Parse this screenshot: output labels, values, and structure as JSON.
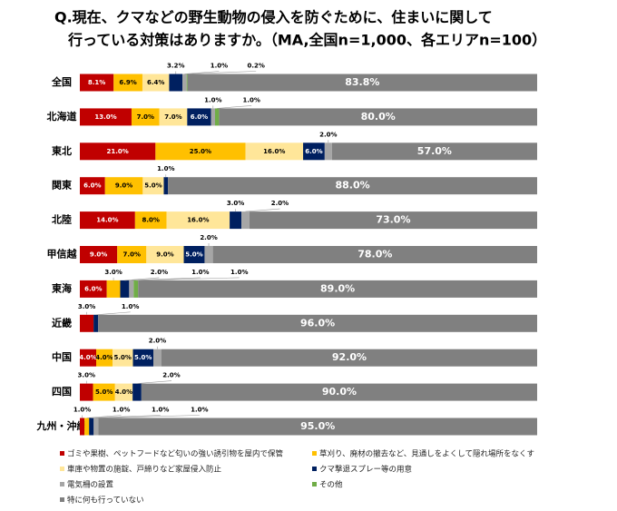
{
  "chart_data": {
    "type": "stacked-bar-horizontal-100",
    "title": [
      "Q.現在、クマなどの野生動物の侵入を防ぐために、住まいに関して",
      "行っている対策はありますか。（MA,全国n=1,000、各エリアn=100）"
    ],
    "categories": [
      "全国",
      "北海道",
      "東北",
      "関東",
      "北陸",
      "甲信越",
      "東海",
      "近畿",
      "中国",
      "四国",
      "九州・沖縄"
    ],
    "series": [
      {
        "name": "ゴミや果樹、ペットフードなど匂いの強い誘引物を屋内で保管",
        "color": "#c00000",
        "values": [
          8.1,
          13.0,
          21.0,
          6.0,
          14.0,
          9.0,
          6.0,
          3.0,
          4.0,
          3.0,
          1.0
        ],
        "value_labels": [
          "8.1%",
          "13.0%",
          "21.0%",
          "6.0%",
          "14.0%",
          "9.0%",
          "6.0%",
          "3.0%",
          "4.0%",
          "3.0%",
          "1.0%"
        ]
      },
      {
        "name": "草刈り、廃材の撤去など、見通しをよくして隠れ場所をなくす",
        "color": "#ffc000",
        "values": [
          6.9,
          7.0,
          25.0,
          9.0,
          8.0,
          7.0,
          3.0,
          null,
          4.0,
          5.0,
          1.0
        ],
        "value_labels": [
          "6.9%",
          "7.0%",
          "25.0%",
          "9.0%",
          "8.0%",
          "7.0%",
          "3.0%",
          null,
          "4.0%",
          "5.0%",
          "1.0%"
        ]
      },
      {
        "name": "車庫や物置の施錠、戸締りなど家屋侵入防止",
        "color": "#ffe699",
        "values": [
          6.4,
          7.0,
          16.0,
          5.0,
          16.0,
          9.0,
          null,
          null,
          5.0,
          4.0,
          null
        ],
        "value_labels": [
          "6.4%",
          "7.0%",
          "16.0%",
          "5.0%",
          "16.0%",
          "9.0%",
          null,
          null,
          "5.0%",
          "4.0%",
          null
        ]
      },
      {
        "name": "クマ撃退スプレー等の用意",
        "color": "#002060",
        "values": [
          3.2,
          6.0,
          6.0,
          1.0,
          3.0,
          5.0,
          2.0,
          1.0,
          5.0,
          2.0,
          1.0
        ],
        "value_labels": [
          "3.2%",
          "6.0%",
          "6.0%",
          "1.0%",
          "3.0%",
          "5.0%",
          "2.0%",
          "1.0%",
          "5.0%",
          "2.0%",
          "1.0%"
        ]
      },
      {
        "name": "電気柵の設置",
        "color": "#a6a6a6",
        "values": [
          1.0,
          1.0,
          2.0,
          null,
          2.0,
          2.0,
          1.0,
          null,
          2.0,
          null,
          1.0
        ],
        "value_labels": [
          "1.0%",
          "1.0%",
          "2.0%",
          null,
          "2.0%",
          "2.0%",
          "1.0%",
          null,
          "2.0%",
          null,
          "1.0%"
        ]
      },
      {
        "name": "その他",
        "color": "#70ad47",
        "values": [
          0.2,
          1.0,
          null,
          null,
          null,
          null,
          1.0,
          null,
          null,
          null,
          null
        ],
        "value_labels": [
          "0.2%",
          "1.0%",
          null,
          null,
          null,
          null,
          "1.0%",
          null,
          null,
          null,
          null
        ]
      },
      {
        "name": "特に何も行っていない",
        "color": "#808080",
        "values": [
          83.8,
          80.0,
          57.0,
          88.0,
          73.0,
          78.0,
          89.0,
          96.0,
          92.0,
          90.0,
          95.0
        ],
        "value_labels": [
          "83.8%",
          "80.0%",
          "57.0%",
          "88.0%",
          "73.0%",
          "78.0%",
          "89.0%",
          "96.0%",
          "92.0%",
          "90.0%",
          "95.0%"
        ]
      }
    ]
  }
}
